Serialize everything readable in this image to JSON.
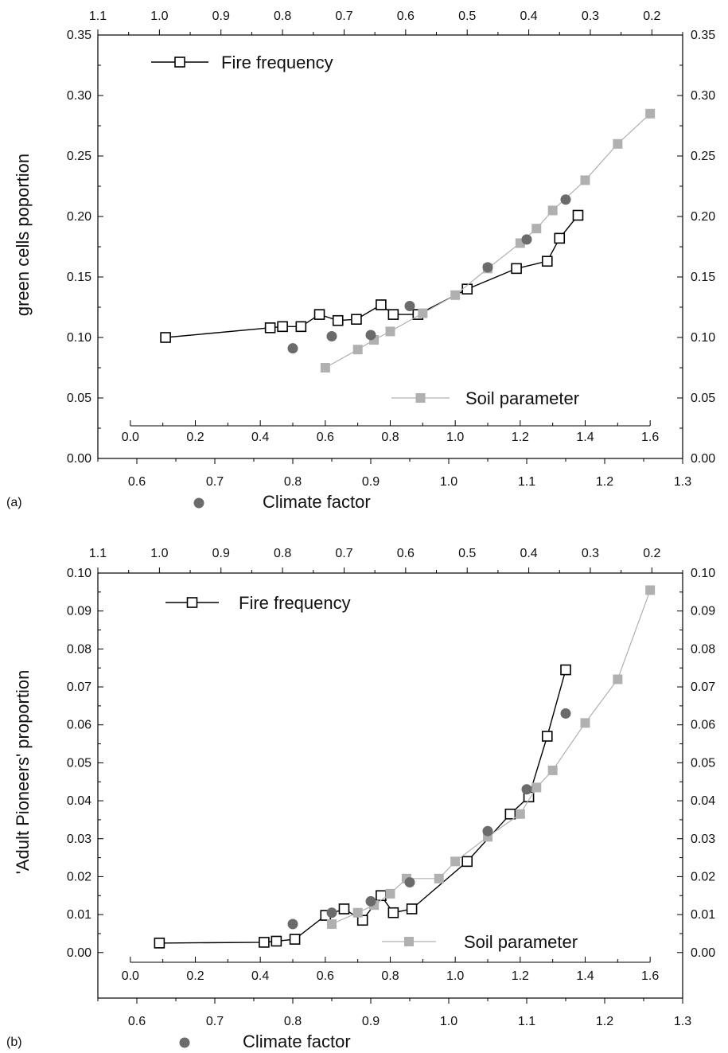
{
  "chart_data": [
    {
      "type": "line",
      "panel_label": "(a)",
      "ylabel": "green cells poportion",
      "ylim": [
        0.0,
        0.35
      ],
      "yticks": [
        "0.00",
        "0.05",
        "0.10",
        "0.15",
        "0.20",
        "0.25",
        "0.30",
        "0.35"
      ],
      "axes": {
        "climate": {
          "label": "Climate factor",
          "range": [
            0.55,
            1.3
          ],
          "ticks": [
            "0.6",
            "0.7",
            "0.8",
            "0.9",
            "1.0",
            "1.1",
            "1.2",
            "1.3"
          ]
        },
        "soil": {
          "range": [
            -0.1,
            1.7
          ],
          "ticks": [
            "0.0",
            "0.2",
            "0.4",
            "0.6",
            "0.8",
            "1.0",
            "1.2",
            "1.4",
            "1.6"
          ]
        },
        "fire": {
          "range": [
            1.1,
            0.15
          ],
          "ticks": [
            "1.1",
            "1.0",
            "0.9",
            "0.8",
            "0.7",
            "0.6",
            "0.5",
            "0.4",
            "0.3",
            "0.2"
          ]
        }
      },
      "series": [
        {
          "name": "Fire frequency",
          "axis": "fire",
          "marker": "open-square",
          "color": "#000000",
          "x": [
            0.99,
            0.82,
            0.8,
            0.77,
            0.74,
            0.71,
            0.68,
            0.64,
            0.62,
            0.58,
            0.5,
            0.42,
            0.37,
            0.35,
            0.32
          ],
          "y": [
            0.1,
            0.108,
            0.109,
            0.109,
            0.119,
            0.114,
            0.115,
            0.127,
            0.119,
            0.119,
            0.14,
            0.157,
            0.163,
            0.182,
            0.201
          ]
        },
        {
          "name": "Soil parameter",
          "axis": "soil",
          "marker": "filled-square",
          "color": "#b0b0b0",
          "x": [
            0.6,
            0.7,
            0.75,
            0.8,
            0.9,
            1.0,
            1.1,
            1.2,
            1.25,
            1.3,
            1.4,
            1.5,
            1.6
          ],
          "y": [
            0.075,
            0.09,
            0.098,
            0.105,
            0.12,
            0.135,
            0.157,
            0.178,
            0.19,
            0.205,
            0.23,
            0.26,
            0.285
          ]
        },
        {
          "name": "Climate factor",
          "axis": "climate",
          "marker": "filled-circle",
          "color": "#6b6b6b",
          "x": [
            0.8,
            0.85,
            0.9,
            0.95,
            1.05,
            1.1,
            1.15
          ],
          "y": [
            0.091,
            0.101,
            0.102,
            0.126,
            0.158,
            0.181,
            0.214
          ]
        }
      ]
    },
    {
      "type": "line",
      "panel_label": "(b)",
      "ylabel": "'Adult Pioneers' proportion",
      "ylim": [
        -0.012,
        0.1
      ],
      "yticks": [
        "0.00",
        "0.01",
        "0.02",
        "0.03",
        "0.04",
        "0.05",
        "0.06",
        "0.07",
        "0.08",
        "0.09",
        "0.10"
      ],
      "axes": {
        "climate": {
          "label": "Climate factor",
          "range": [
            0.55,
            1.3
          ],
          "ticks": [
            "0.6",
            "0.7",
            "0.8",
            "0.9",
            "1.0",
            "1.1",
            "1.2",
            "1.3"
          ]
        },
        "soil": {
          "range": [
            -0.1,
            1.7
          ],
          "ticks": [
            "0.0",
            "0.2",
            "0.4",
            "0.6",
            "0.8",
            "1.0",
            "1.2",
            "1.4",
            "1.6"
          ]
        },
        "fire": {
          "range": [
            1.1,
            0.15
          ],
          "ticks": [
            "1.1",
            "1.0",
            "0.9",
            "0.8",
            "0.7",
            "0.6",
            "0.5",
            "0.4",
            "0.3",
            "0.2"
          ]
        }
      },
      "series": [
        {
          "name": "Fire frequency",
          "axis": "fire",
          "marker": "open-square",
          "color": "#000000",
          "x": [
            1.0,
            0.83,
            0.81,
            0.78,
            0.73,
            0.7,
            0.67,
            0.64,
            0.62,
            0.59,
            0.5,
            0.43,
            0.4,
            0.37,
            0.34
          ],
          "y": [
            0.0025,
            0.0027,
            0.003,
            0.0035,
            0.0098,
            0.0115,
            0.0085,
            0.015,
            0.0105,
            0.0115,
            0.024,
            0.0365,
            0.041,
            0.057,
            0.0745
          ]
        },
        {
          "name": "Soil parameter",
          "axis": "soil",
          "marker": "filled-square",
          "color": "#b0b0b0",
          "x": [
            0.62,
            0.7,
            0.75,
            0.8,
            0.85,
            0.95,
            1.0,
            1.1,
            1.2,
            1.25,
            1.3,
            1.4,
            1.5,
            1.6
          ],
          "y": [
            0.0075,
            0.0105,
            0.0125,
            0.0155,
            0.0195,
            0.0195,
            0.024,
            0.0305,
            0.0365,
            0.0435,
            0.048,
            0.0605,
            0.072,
            0.0955
          ]
        },
        {
          "name": "Climate factor",
          "axis": "climate",
          "marker": "filled-circle",
          "color": "#6b6b6b",
          "x": [
            0.8,
            0.85,
            0.9,
            0.95,
            1.05,
            1.1,
            1.15
          ],
          "y": [
            0.0075,
            0.0105,
            0.0135,
            0.0185,
            0.032,
            0.043,
            0.063
          ]
        }
      ]
    }
  ]
}
